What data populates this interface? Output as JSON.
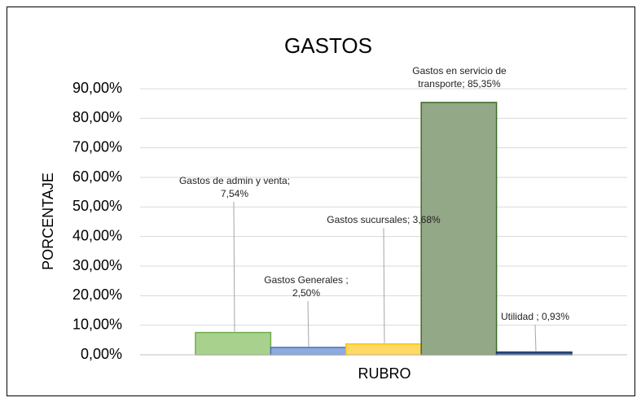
{
  "chart_data": {
    "type": "bar",
    "title": "GASTOS",
    "x_label": "RUBRO",
    "y_label": "PORCENTAJE",
    "categories": [
      null
    ],
    "series": [
      {
        "color": "#a9d18e",
        "edgecolor": "#70ad47",
        "values": [
          7.54
        ],
        "value_labels": [
          "Gastos de admin y venta; 7,54%"
        ]
      },
      {
        "color": "#8faadc",
        "edgecolor": "#4472c4",
        "values": [
          2.5
        ],
        "value_labels": [
          "Gastos Generales ; 2,50%"
        ]
      },
      {
        "color": "#ffd966",
        "edgecolor": "#ffc000",
        "values": [
          3.68
        ],
        "value_labels": [
          "Gastos sucursales; 3,68%"
        ]
      },
      {
        "color": "#93a886",
        "edgecolor": "#3f6b28",
        "values": [
          85.35
        ],
        "value_labels": [
          "Gastos en servicio de transporte; 85,35%"
        ]
      },
      {
        "color": "#2f5597",
        "edgecolor": "#203864",
        "values": [
          0.93
        ],
        "value_labels": [
          "Utilidad ; 0,93%"
        ]
      }
    ],
    "ylim": [
      0,
      90
    ],
    "yticks": [
      {
        "value": 0,
        "label": "0,00%"
      },
      {
        "value": 10,
        "label": "10,00%"
      },
      {
        "value": 20,
        "label": "20,00%"
      },
      {
        "value": 30,
        "label": "30,00%"
      },
      {
        "value": 40,
        "label": "40,00%"
      },
      {
        "value": 50,
        "label": "50,00%"
      },
      {
        "value": 60,
        "label": "60,00%"
      },
      {
        "value": 70,
        "label": "70,00%"
      },
      {
        "value": 80,
        "label": "80,00%"
      },
      {
        "value": 90,
        "label": "90,00%"
      }
    ],
    "grid": true
  }
}
